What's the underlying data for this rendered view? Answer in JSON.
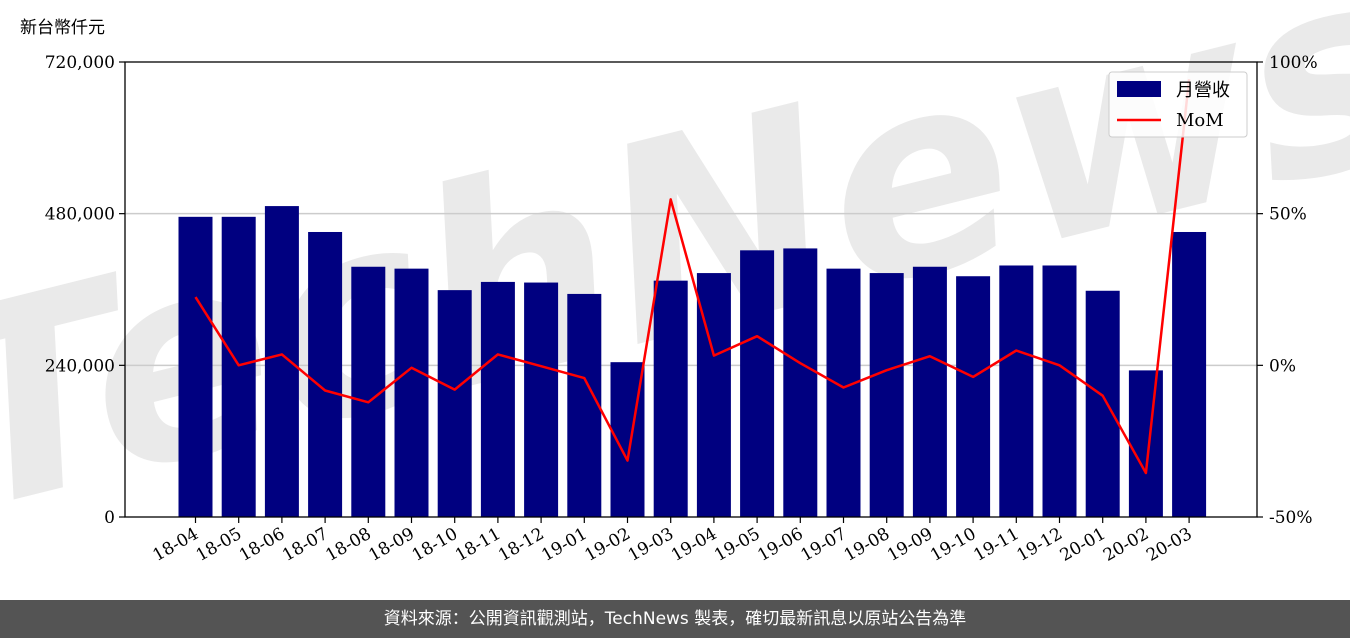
{
  "chart_data": {
    "type": "bar",
    "y_unit_label": "新台幣仟元",
    "categories": [
      "18-04",
      "18-05",
      "18-06",
      "18-07",
      "18-08",
      "18-09",
      "18-10",
      "18-11",
      "18-12",
      "19-01",
      "19-02",
      "19-03",
      "19-04",
      "19-05",
      "19-06",
      "19-07",
      "19-08",
      "19-09",
      "19-10",
      "19-11",
      "19-12",
      "20-01",
      "20-02",
      "20-03"
    ],
    "series": [
      {
        "name": "月營收",
        "type": "bar",
        "axis": "left",
        "color": "#000080",
        "values": [
          475000,
          475000,
          492000,
          451000,
          396000,
          393000,
          359000,
          372000,
          371000,
          353000,
          245000,
          374000,
          386000,
          422000,
          425000,
          393000,
          386000,
          396000,
          381000,
          398000,
          398000,
          358000,
          232000,
          451000
        ]
      },
      {
        "name": "MoM",
        "type": "line",
        "axis": "right",
        "color": "#ff0000",
        "values": [
          22.5,
          0.0,
          3.6,
          -8.3,
          -12.2,
          -0.8,
          -8.0,
          3.6,
          -0.3,
          -4.2,
          -31.4,
          54.7,
          3.2,
          9.6,
          0.7,
          -7.3,
          -1.6,
          3.0,
          -3.8,
          4.9,
          0.0,
          -10.0,
          -35.5,
          94.3
        ]
      }
    ],
    "y_left": {
      "ylim": [
        0,
        720000
      ],
      "ticks": [
        0,
        240000,
        480000,
        720000
      ],
      "tick_labels": [
        "0",
        "240,000",
        "480,000",
        "720,000"
      ]
    },
    "y_right": {
      "ylim": [
        -50,
        100
      ],
      "ticks": [
        -50,
        0,
        50,
        100
      ],
      "tick_labels": [
        "-50%",
        "0%",
        "50%",
        "100%"
      ]
    },
    "grid": "horizontal",
    "legend_position": "top-right",
    "watermark": "TechNews"
  },
  "footer": {
    "source_text": "資料來源：公開資訊觀測站，TechNews 製表，確切最新訊息以原站公告為準"
  }
}
